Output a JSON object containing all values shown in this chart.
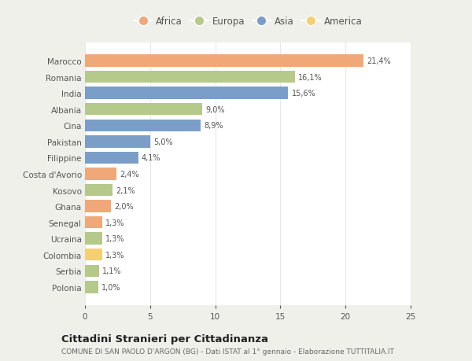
{
  "countries": [
    "Marocco",
    "Romania",
    "India",
    "Albania",
    "Cina",
    "Pakistan",
    "Filippine",
    "Costa d'Avorio",
    "Kosovo",
    "Ghana",
    "Senegal",
    "Ucraina",
    "Colombia",
    "Serbia",
    "Polonia"
  ],
  "values": [
    21.4,
    16.1,
    15.6,
    9.0,
    8.9,
    5.0,
    4.1,
    2.4,
    2.1,
    2.0,
    1.3,
    1.3,
    1.3,
    1.1,
    1.0
  ],
  "labels": [
    "21,4%",
    "16,1%",
    "15,6%",
    "9,0%",
    "8,9%",
    "5,0%",
    "4,1%",
    "2,4%",
    "2,1%",
    "2,0%",
    "1,3%",
    "1,3%",
    "1,3%",
    "1,1%",
    "1,0%"
  ],
  "continents": [
    "Africa",
    "Europa",
    "Asia",
    "Europa",
    "Asia",
    "Asia",
    "Asia",
    "Africa",
    "Europa",
    "Africa",
    "Africa",
    "Europa",
    "America",
    "Europa",
    "Europa"
  ],
  "continent_colors": {
    "Africa": "#F0A878",
    "Europa": "#B5C98A",
    "Asia": "#7B9EC8",
    "America": "#F5D070"
  },
  "legend_order": [
    "Africa",
    "Europa",
    "Asia",
    "America"
  ],
  "title": "Cittadini Stranieri per Cittadinanza",
  "subtitle": "COMUNE DI SAN PAOLO D'ARGON (BG) - Dati ISTAT al 1° gennaio - Elaborazione TUTTITALIA.IT",
  "xlim": [
    0,
    25
  ],
  "xticks": [
    0,
    5,
    10,
    15,
    20,
    25
  ],
  "fig_background": "#f0f0eb",
  "plot_background": "#ffffff",
  "grid_color": "#e8e8e8",
  "text_color": "#555555",
  "title_color": "#222222",
  "subtitle_color": "#666666"
}
